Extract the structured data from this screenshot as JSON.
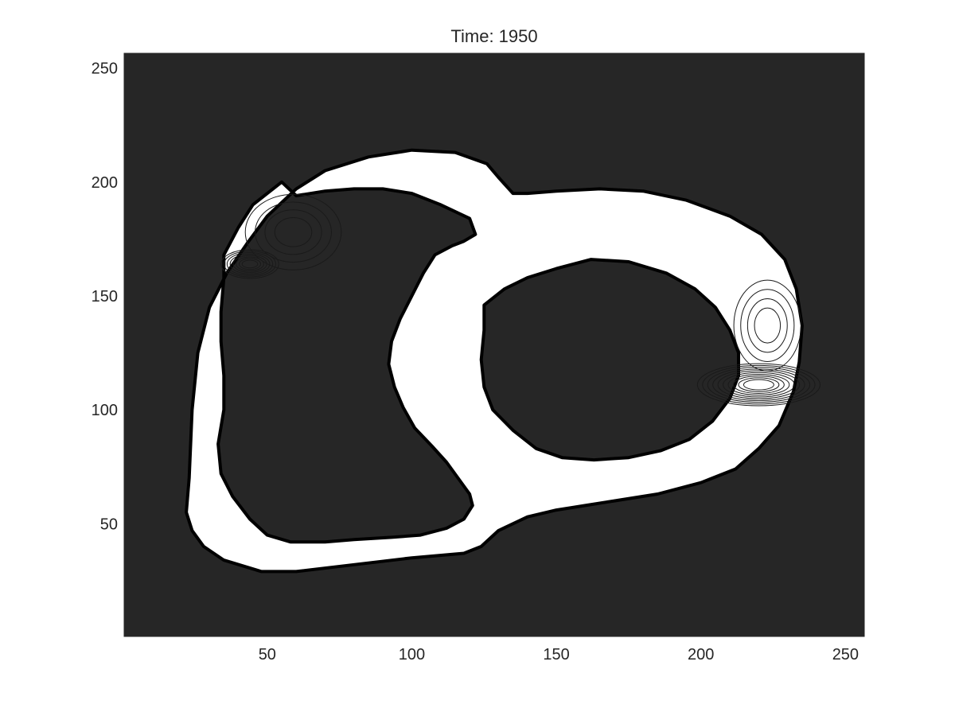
{
  "chart_data": {
    "type": "heatmap",
    "title": "Time: 1950",
    "xlabel": "",
    "ylabel": "",
    "xlim": [
      0.5,
      256.5
    ],
    "ylim": [
      0.5,
      256.5
    ],
    "x_ticks": [
      50,
      100,
      150,
      200,
      250
    ],
    "y_ticks": [
      50,
      100,
      150,
      200,
      250
    ],
    "x_tick_labels": [
      "50",
      "100",
      "150",
      "200",
      "250"
    ],
    "y_tick_labels": [
      "50",
      "100",
      "150",
      "200",
      "250"
    ],
    "grid": false,
    "colormap": "gray",
    "colors": {
      "background": "#262626",
      "domain": "#ffffff",
      "boundary": "#000000",
      "contour": "#1a1a1a",
      "axis": "#262626"
    },
    "domain_outer_boundary": [
      [
        22,
        55
      ],
      [
        23,
        70
      ],
      [
        24,
        100
      ],
      [
        26,
        125
      ],
      [
        30,
        145
      ],
      [
        36,
        160
      ],
      [
        43,
        173
      ],
      [
        50,
        185
      ],
      [
        60,
        197
      ],
      [
        70,
        205
      ],
      [
        85,
        211
      ],
      [
        100,
        214
      ],
      [
        115,
        213
      ],
      [
        126,
        208
      ],
      [
        130,
        202
      ],
      [
        135,
        195
      ],
      [
        140,
        195
      ],
      [
        150,
        196
      ],
      [
        165,
        197
      ],
      [
        180,
        196
      ],
      [
        195,
        192
      ],
      [
        210,
        185
      ],
      [
        221,
        177
      ],
      [
        229,
        166
      ],
      [
        233,
        153
      ],
      [
        235,
        137
      ],
      [
        234,
        121
      ],
      [
        232,
        108
      ],
      [
        227,
        93
      ],
      [
        220,
        83
      ],
      [
        212,
        74
      ],
      [
        200,
        68
      ],
      [
        185,
        63
      ],
      [
        170,
        60
      ],
      [
        160,
        58
      ],
      [
        150,
        56
      ],
      [
        140,
        53
      ],
      [
        130,
        47
      ],
      [
        124,
        40
      ],
      [
        118,
        37
      ],
      [
        100,
        35
      ],
      [
        80,
        32
      ],
      [
        60,
        29
      ],
      [
        48,
        29
      ],
      [
        35,
        34
      ],
      [
        28,
        40
      ],
      [
        24,
        47
      ],
      [
        22,
        55
      ]
    ],
    "domain_holes": [
      [
        [
          55,
          200
        ],
        [
          45,
          190
        ],
        [
          40,
          180
        ],
        [
          35,
          168
        ],
        [
          35,
          158
        ],
        [
          34,
          143
        ],
        [
          34,
          130
        ],
        [
          35,
          115
        ],
        [
          35,
          100
        ],
        [
          33,
          85
        ],
        [
          34,
          72
        ],
        [
          38,
          62
        ],
        [
          44,
          52
        ],
        [
          50,
          45
        ],
        [
          58,
          42
        ],
        [
          70,
          42
        ],
        [
          80,
          43
        ],
        [
          93,
          44
        ],
        [
          103,
          45
        ],
        [
          112,
          48
        ],
        [
          118,
          52
        ],
        [
          121,
          58
        ],
        [
          120,
          63
        ],
        [
          116,
          70
        ],
        [
          112,
          77
        ],
        [
          107,
          84
        ],
        [
          101,
          92
        ],
        [
          97,
          101
        ],
        [
          94,
          110
        ],
        [
          92,
          120
        ],
        [
          93,
          130
        ],
        [
          96,
          140
        ],
        [
          100,
          150
        ],
        [
          104,
          160
        ],
        [
          108,
          168
        ],
        [
          114,
          172
        ],
        [
          118,
          174
        ],
        [
          122,
          177
        ],
        [
          120,
          184
        ],
        [
          110,
          190
        ],
        [
          100,
          195
        ],
        [
          90,
          197
        ],
        [
          80,
          197
        ],
        [
          70,
          196
        ],
        [
          60,
          194
        ],
        [
          55,
          200
        ]
      ],
      [
        [
          125,
          146
        ],
        [
          132,
          153
        ],
        [
          140,
          158
        ],
        [
          150,
          162
        ],
        [
          162,
          166
        ],
        [
          175,
          165
        ],
        [
          188,
          160
        ],
        [
          198,
          153
        ],
        [
          205,
          145
        ],
        [
          210,
          135
        ],
        [
          213,
          125
        ],
        [
          213,
          115
        ],
        [
          210,
          105
        ],
        [
          204,
          95
        ],
        [
          196,
          87
        ],
        [
          186,
          82
        ],
        [
          175,
          79
        ],
        [
          163,
          78
        ],
        [
          152,
          79
        ],
        [
          143,
          83
        ],
        [
          135,
          91
        ],
        [
          128,
          100
        ],
        [
          125,
          110
        ],
        [
          124,
          122
        ],
        [
          125,
          135
        ],
        [
          125,
          146
        ]
      ]
    ],
    "contour_groups": [
      {
        "cx": 59,
        "cy": 178,
        "rx": 20,
        "ry": 20,
        "levels": 4
      },
      {
        "cx": 44,
        "cy": 164,
        "rx": 11,
        "ry": 7,
        "levels": 8
      },
      {
        "cx": 223,
        "cy": 137,
        "rx": 14,
        "ry": 24,
        "levels": 4
      },
      {
        "cx": 220,
        "cy": 111,
        "rx": 23,
        "ry": 10,
        "levels": 10
      }
    ]
  }
}
